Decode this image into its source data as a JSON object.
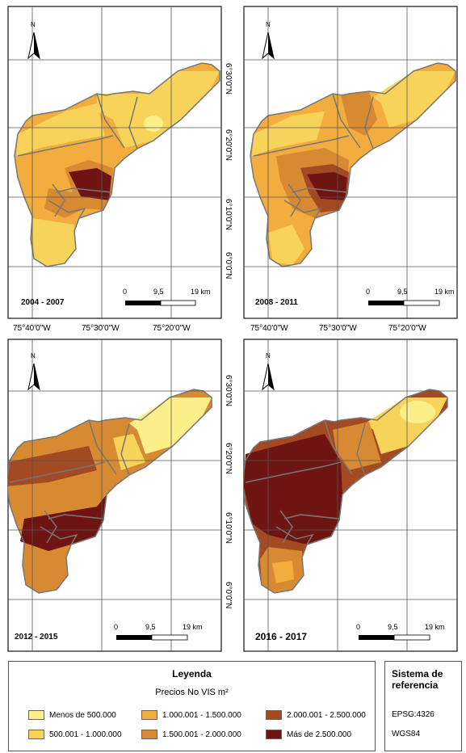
{
  "maps": [
    {
      "period": "2004 - 2007",
      "north": "N"
    },
    {
      "period": "2008 - 2011",
      "north": "N"
    },
    {
      "period": "2012 - 2015",
      "north": "N"
    },
    {
      "period": "2016 - 2017",
      "north": "N"
    }
  ],
  "scale": {
    "zero": "0",
    "mid": "9,5",
    "end": "19 km"
  },
  "lon_labels": [
    "75°40'0\"W",
    "75°30'0\"W",
    "75°20'0\"W"
  ],
  "lat_labels": [
    "6°30'0\"N",
    "6°20'0\"N",
    "6°10'0\"N",
    "6°0'0\"N"
  ],
  "legend": {
    "title": "Leyenda",
    "subtitle": "Precios No VIS m²",
    "classes": [
      {
        "label": "Menos de 500.000",
        "color": "#fbef8a"
      },
      {
        "label": "500.001 - 1.000.000",
        "color": "#f8d35a"
      },
      {
        "label": "1.000.001 - 1.500.000",
        "color": "#f2ad3e"
      },
      {
        "label": "1.500.001 - 2.000.000",
        "color": "#d88a32"
      },
      {
        "label": "2.000.001 - 2.500.000",
        "color": "#a44a22"
      },
      {
        "label": "Más de 2.500.000",
        "color": "#6e1513"
      }
    ]
  },
  "reference": {
    "title": "Sistema de referencia",
    "epsg": "EPSG:4326",
    "datum": "WGS84"
  }
}
